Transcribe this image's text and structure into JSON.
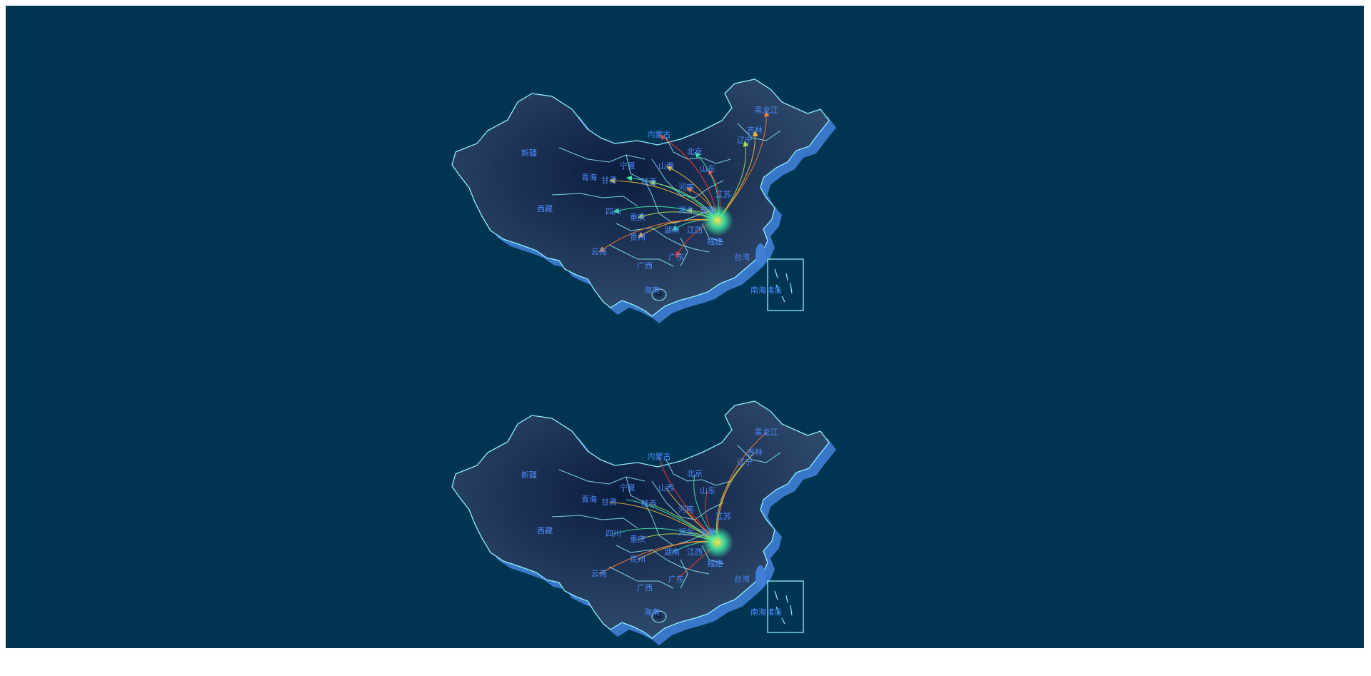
{
  "colors": {
    "background": "#003552",
    "page": "#ffffff",
    "land_fill_center": "#0b1d3f",
    "land_fill_edge": "#2f4a6d",
    "border": "#8ff0ff",
    "shadow": "#3f7fd6",
    "label": "#4d8bff",
    "flow_gradient": [
      "#3ff0a8",
      "#a8e05a",
      "#f2c231",
      "#ff7a2a",
      "#ff3b2a"
    ]
  },
  "maps": [
    {
      "name": "map-top",
      "flow_direction": "outbound",
      "hub": "上海",
      "labels": {
        "xinjiang": "新疆",
        "xizang": "西藏",
        "qinghai": "青海",
        "neimenggu": "内蒙古",
        "heilongjiang": "黑龙江",
        "jilin": "吉林",
        "liaoning": "辽宁",
        "hebei": "北京",
        "ningxia": "宁夏",
        "gansu": "甘肃",
        "shanxi": "山西",
        "shandong": "山东",
        "shaanxi": "陕西",
        "henan": "河南",
        "jiangsu": "江苏",
        "sichuan": "四川",
        "chongqing": "重庆",
        "hubei": "湖北",
        "anhui": "安徽",
        "hunan": "湖南",
        "jiangxi": "江西",
        "guizhou": "贵州",
        "yunnan": "云南",
        "fujian": "福建",
        "guangxi": "广西",
        "guangdong": "广东",
        "taiwan": "台湾",
        "hainan": "海南",
        "nanhai": "南海诸岛"
      }
    },
    {
      "name": "map-bottom",
      "flow_direction": "inbound",
      "hub": "上海",
      "labels": {
        "xinjiang": "新疆",
        "xizang": "西藏",
        "qinghai": "青海",
        "neimenggu": "内蒙古",
        "heilongjiang": "黑龙江",
        "jilin": "吉林",
        "liaoning": "辽宁",
        "hebei": "北京",
        "ningxia": "宁夏",
        "gansu": "甘肃",
        "shanxi": "山西",
        "shandong": "山东",
        "shaanxi": "陕西",
        "henan": "河南",
        "jiangsu": "江苏",
        "sichuan": "四川",
        "chongqing": "重庆",
        "hubei": "湖北",
        "anhui": "安徽",
        "hunan": "湖南",
        "jiangxi": "江西",
        "guizhou": "贵州",
        "yunnan": "云南",
        "fujian": "福建",
        "guangxi": "广西",
        "guangdong": "广东",
        "taiwan": "台湾",
        "hainan": "海南",
        "nanhai": "南海诸岛"
      }
    }
  ]
}
